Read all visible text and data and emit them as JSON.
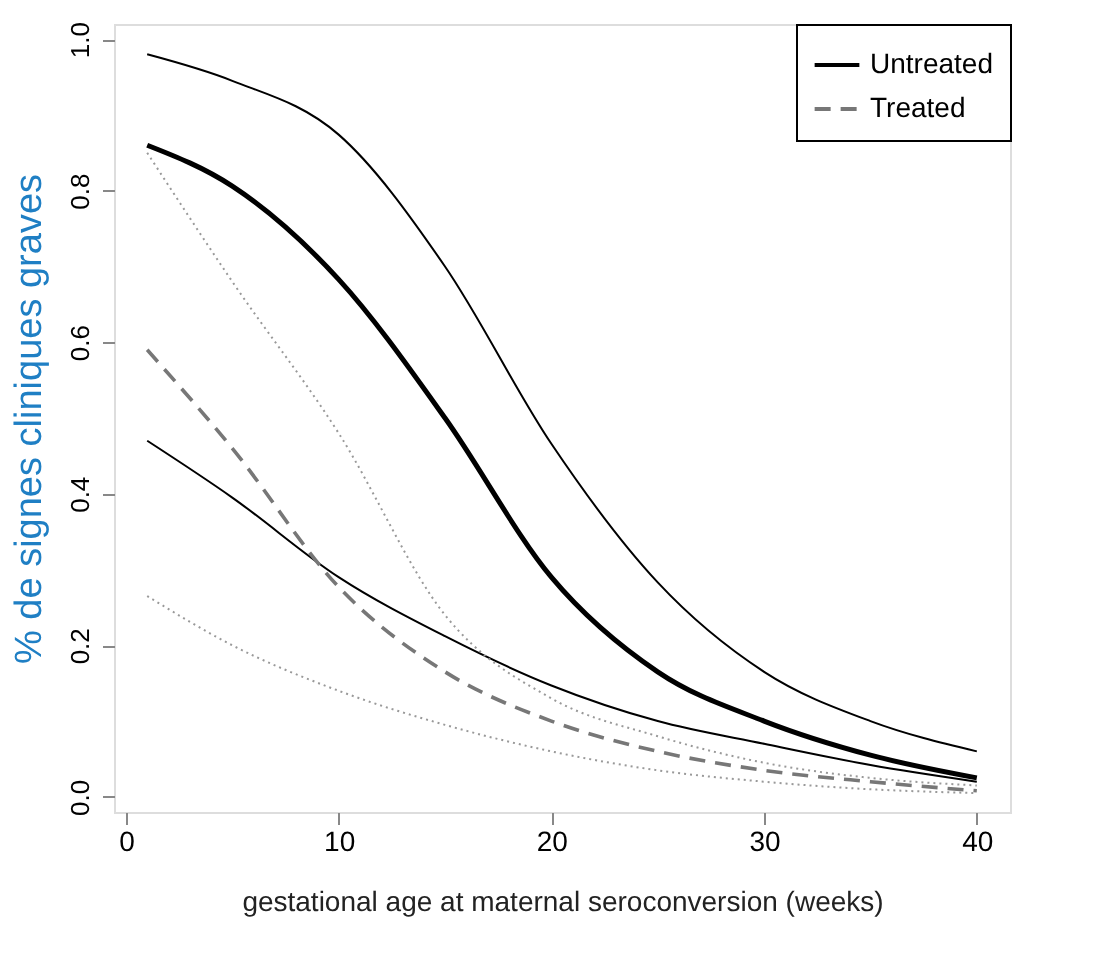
{
  "chart_data": {
    "type": "line",
    "xlabel": "gestational age at maternal seroconversion (weeks)",
    "ylabel": "% de signes cliniques graves",
    "x": [
      1,
      5,
      10,
      15,
      20,
      25,
      30,
      35,
      40
    ],
    "series": [
      {
        "color": "#000000",
        "line_style": "solid",
        "values": [
          0.98,
          0.945,
          0.874,
          0.7,
          0.466,
          0.283,
          0.165,
          0.1,
          0.06
        ]
      },
      {
        "name": "Untreated",
        "color": "#000000",
        "line_style": "solid",
        "values": [
          0.86,
          0.806,
          0.683,
          0.5,
          0.29,
          0.165,
          0.1,
          0.055,
          0.025
        ]
      },
      {
        "color": "#000000",
        "line_style": "solid",
        "values": [
          0.47,
          0.395,
          0.29,
          0.212,
          0.147,
          0.1,
          0.07,
          0.042,
          0.02
        ]
      },
      {
        "name": "Treated",
        "color": "#777777",
        "line_style": "dashed",
        "values": [
          0.59,
          0.46,
          0.277,
          0.165,
          0.1,
          0.06,
          0.035,
          0.02,
          0.008
        ]
      },
      {
        "color": "#999999",
        "line_style": "dotted",
        "values": [
          0.85,
          0.68,
          0.48,
          0.24,
          0.13,
          0.08,
          0.045,
          0.025,
          0.015
        ]
      },
      {
        "color": "#999999",
        "line_style": "dotted",
        "values": [
          0.265,
          0.2,
          0.14,
          0.095,
          0.06,
          0.035,
          0.02,
          0.01,
          0.005
        ]
      }
    ],
    "xlim": [
      -0.56,
      41.56
    ],
    "ylim": [
      -0.02,
      1.02
    ],
    "xticks": [
      0,
      10,
      20,
      30,
      40
    ],
    "yticks": [
      {
        "value": 0,
        "label": "0.0"
      },
      {
        "value": 0.2,
        "label": "0.2"
      },
      {
        "value": 0.4,
        "label": "0.4"
      },
      {
        "value": 0.6,
        "label": "0.6"
      },
      {
        "value": 0.8,
        "label": "0.8"
      },
      {
        "value": 1.0,
        "label": "1.0"
      }
    ],
    "grid": false,
    "legend": "top right",
    "marker": "none"
  }
}
